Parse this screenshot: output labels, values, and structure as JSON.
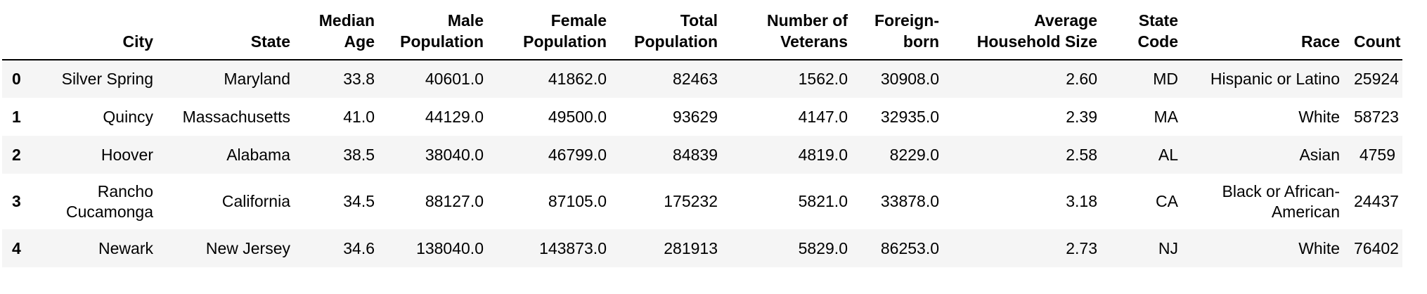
{
  "table": {
    "index_header": "",
    "columns": [
      "City",
      "State",
      "Median Age",
      "Male Population",
      "Female Population",
      "Total Population",
      "Number of Veterans",
      "Foreign-born",
      "Average Household Size",
      "State Code",
      "Race",
      "Count"
    ],
    "rows": [
      {
        "index": "0",
        "cells": [
          "Silver Spring",
          "Maryland",
          "33.8",
          "40601.0",
          "41862.0",
          "82463",
          "1562.0",
          "30908.0",
          "2.60",
          "MD",
          "Hispanic or Latino",
          "25924"
        ]
      },
      {
        "index": "1",
        "cells": [
          "Quincy",
          "Massachusetts",
          "41.0",
          "44129.0",
          "49500.0",
          "93629",
          "4147.0",
          "32935.0",
          "2.39",
          "MA",
          "White",
          "58723"
        ]
      },
      {
        "index": "2",
        "cells": [
          "Hoover",
          "Alabama",
          "38.5",
          "38040.0",
          "46799.0",
          "84839",
          "4819.0",
          "8229.0",
          "2.58",
          "AL",
          "Asian",
          "4759"
        ]
      },
      {
        "index": "3",
        "cells": [
          "Rancho Cucamonga",
          "California",
          "34.5",
          "88127.0",
          "87105.0",
          "175232",
          "5821.0",
          "33878.0",
          "3.18",
          "CA",
          "Black or African-American",
          "24437"
        ]
      },
      {
        "index": "4",
        "cells": [
          "Newark",
          "New Jersey",
          "34.6",
          "138040.0",
          "143873.0",
          "281913",
          "5829.0",
          "86253.0",
          "2.73",
          "NJ",
          "White",
          "76402"
        ]
      }
    ]
  }
}
